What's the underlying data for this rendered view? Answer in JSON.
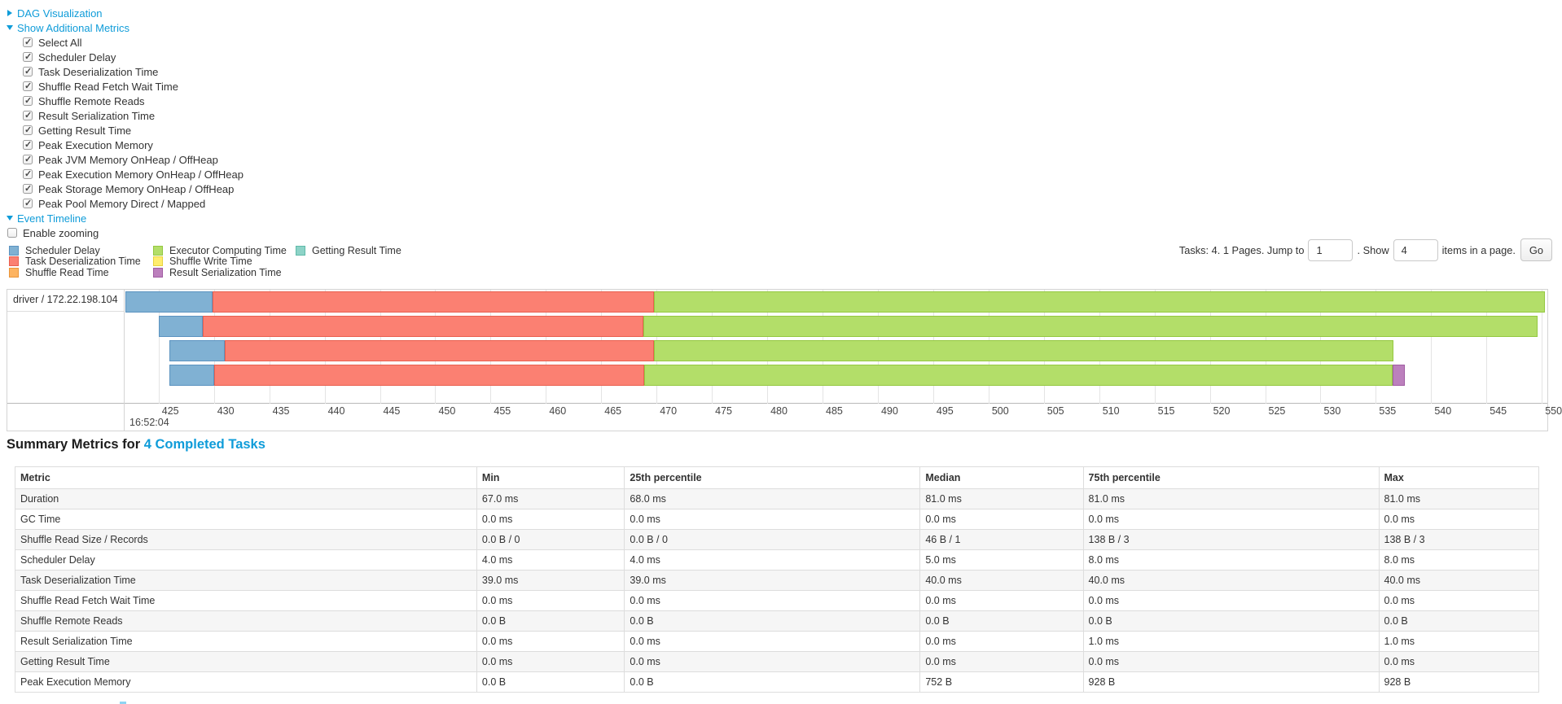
{
  "colors": {
    "link": "#0f9cd9",
    "scheduler_delay": {
      "fill": "#80B1D3",
      "border": "#5b93c0"
    },
    "task_deserialization": {
      "fill": "#FB8072",
      "border": "#e95f4f"
    },
    "shuffle_read": {
      "fill": "#FDB462",
      "border": "#e9953a"
    },
    "executor_computing": {
      "fill": "#B3DE69",
      "border": "#94c840"
    },
    "shuffle_write": {
      "fill": "#FFED6F",
      "border": "#e8d33e"
    },
    "result_serialization": {
      "fill": "#BC80BD",
      "border": "#a05ca2"
    },
    "getting_result": {
      "fill": "#8DD3C7",
      "border": "#5fbaa9"
    }
  },
  "toggles": {
    "dag": "DAG Visualization",
    "metrics": "Show Additional Metrics",
    "timeline": "Event Timeline",
    "enable_zooming": "Enable zooming"
  },
  "metrics_panel": {
    "items": [
      "Select All",
      "Scheduler Delay",
      "Task Deserialization Time",
      "Shuffle Read Fetch Wait Time",
      "Shuffle Remote Reads",
      "Result Serialization Time",
      "Getting Result Time",
      "Peak Execution Memory",
      "Peak JVM Memory OnHeap / OffHeap",
      "Peak Execution Memory OnHeap / OffHeap",
      "Peak Storage Memory OnHeap / OffHeap",
      "Peak Pool Memory Direct / Mapped"
    ]
  },
  "legend": {
    "columns": [
      [
        {
          "label": "Scheduler Delay",
          "key": "scheduler_delay"
        },
        {
          "label": "Task Deserialization Time",
          "key": "task_deserialization"
        },
        {
          "label": "Shuffle Read Time",
          "key": "shuffle_read"
        }
      ],
      [
        {
          "label": "Executor Computing Time",
          "key": "executor_computing"
        },
        {
          "label": "Shuffle Write Time",
          "key": "shuffle_write"
        },
        {
          "label": "Result Serialization Time",
          "key": "result_serialization"
        }
      ],
      [
        {
          "label": "Getting Result Time",
          "key": "getting_result"
        }
      ]
    ]
  },
  "pagination": {
    "prefix": "Tasks: 4. 1 Pages. Jump to",
    "jump_value": "1",
    "mid": ". Show",
    "show_value": "4",
    "suffix": "items in a page.",
    "go_label": "Go"
  },
  "timeline": {
    "group_label": "driver / 172.22.198.104",
    "axis": {
      "min": 422,
      "max": 550.5,
      "major_label": "16:52:04",
      "ticks": [
        425,
        430,
        435,
        440,
        445,
        450,
        455,
        460,
        465,
        470,
        475,
        480,
        485,
        490,
        495,
        500,
        505,
        510,
        515,
        520,
        525,
        530,
        535,
        540,
        545,
        550
      ]
    },
    "rows": [
      {
        "segments": [
          {
            "key": "scheduler_delay",
            "start": 422.0,
            "end": 429.9
          },
          {
            "key": "task_deserialization",
            "start": 429.9,
            "end": 469.8
          },
          {
            "key": "executor_computing",
            "start": 469.8,
            "end": 550.3
          }
        ]
      },
      {
        "segments": [
          {
            "key": "scheduler_delay",
            "start": 425.0,
            "end": 429.0
          },
          {
            "key": "task_deserialization",
            "start": 429.0,
            "end": 468.8
          },
          {
            "key": "executor_computing",
            "start": 468.8,
            "end": 549.6
          }
        ]
      },
      {
        "segments": [
          {
            "key": "scheduler_delay",
            "start": 426.0,
            "end": 431.0
          },
          {
            "key": "task_deserialization",
            "start": 431.0,
            "end": 469.8
          },
          {
            "key": "executor_computing",
            "start": 469.8,
            "end": 536.6
          }
        ]
      },
      {
        "segments": [
          {
            "key": "scheduler_delay",
            "start": 426.0,
            "end": 430.0
          },
          {
            "key": "task_deserialization",
            "start": 430.0,
            "end": 468.9
          },
          {
            "key": "executor_computing",
            "start": 468.9,
            "end": 536.5
          },
          {
            "key": "result_serialization",
            "start": 536.5,
            "end": 537.6
          }
        ]
      }
    ]
  },
  "summary": {
    "title_prefix": "Summary Metrics for ",
    "title_link": "4 Completed Tasks",
    "headers": [
      "Metric",
      "Min",
      "25th percentile",
      "Median",
      "75th percentile",
      "Max"
    ],
    "rows": [
      {
        "metric": "Duration",
        "values": [
          "67.0 ms",
          "68.0 ms",
          "81.0 ms",
          "81.0 ms",
          "81.0 ms"
        ]
      },
      {
        "metric": "GC Time",
        "values": [
          "0.0 ms",
          "0.0 ms",
          "0.0 ms",
          "0.0 ms",
          "0.0 ms"
        ]
      },
      {
        "metric": "Shuffle Read Size / Records",
        "values": [
          "0.0 B / 0",
          "0.0 B / 0",
          "46 B / 1",
          "138 B / 3",
          "138 B / 3"
        ]
      },
      {
        "metric": "Scheduler Delay",
        "values": [
          "4.0 ms",
          "4.0 ms",
          "5.0 ms",
          "8.0 ms",
          "8.0 ms"
        ]
      },
      {
        "metric": "Task Deserialization Time",
        "values": [
          "39.0 ms",
          "39.0 ms",
          "40.0 ms",
          "40.0 ms",
          "40.0 ms"
        ]
      },
      {
        "metric": "Shuffle Read Fetch Wait Time",
        "values": [
          "0.0 ms",
          "0.0 ms",
          "0.0 ms",
          "0.0 ms",
          "0.0 ms"
        ]
      },
      {
        "metric": "Shuffle Remote Reads",
        "values": [
          "0.0 B",
          "0.0 B",
          "0.0 B",
          "0.0 B",
          "0.0 B"
        ]
      },
      {
        "metric": "Result Serialization Time",
        "values": [
          "0.0 ms",
          "0.0 ms",
          "0.0 ms",
          "1.0 ms",
          "1.0 ms"
        ]
      },
      {
        "metric": "Getting Result Time",
        "values": [
          "0.0 ms",
          "0.0 ms",
          "0.0 ms",
          "0.0 ms",
          "0.0 ms"
        ]
      },
      {
        "metric": "Peak Execution Memory",
        "values": [
          "0.0 B",
          "0.0 B",
          "752 B",
          "928 B",
          "928 B"
        ]
      }
    ]
  }
}
